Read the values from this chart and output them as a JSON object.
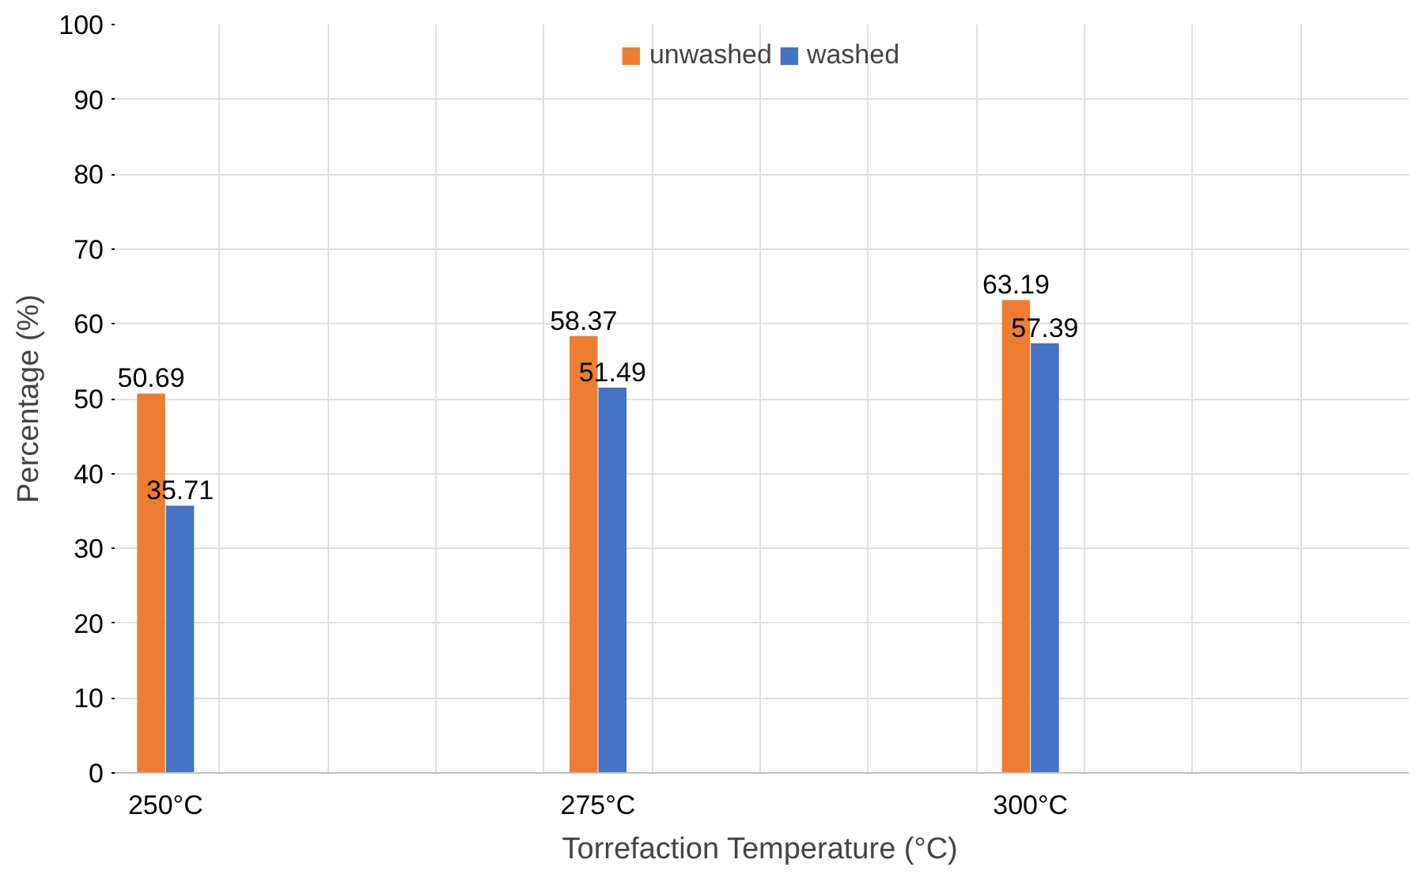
{
  "chart_data": {
    "type": "bar",
    "xlabel": "Torrefaction Temperature (°C)",
    "ylabel": "Percentage (%)",
    "categories": [
      "250°C",
      null,
      null,
      null,
      "275°C",
      null,
      null,
      null,
      "300°C",
      null,
      null,
      null
    ],
    "series": [
      {
        "name": "unwashed",
        "color": "#ed7d31",
        "values": [
          50.69,
          null,
          null,
          null,
          58.37,
          null,
          null,
          null,
          63.19,
          null,
          null,
          null
        ]
      },
      {
        "name": "washed",
        "color": "#4472c4",
        "values": [
          35.71,
          null,
          null,
          null,
          51.49,
          null,
          null,
          null,
          57.39,
          null,
          null,
          null
        ]
      }
    ],
    "ylim": [
      0,
      100
    ],
    "yticks": [
      0,
      10,
      20,
      30,
      40,
      50,
      60,
      70,
      80,
      90,
      100
    ],
    "grid": true,
    "legend": "top",
    "data_labels": true
  }
}
